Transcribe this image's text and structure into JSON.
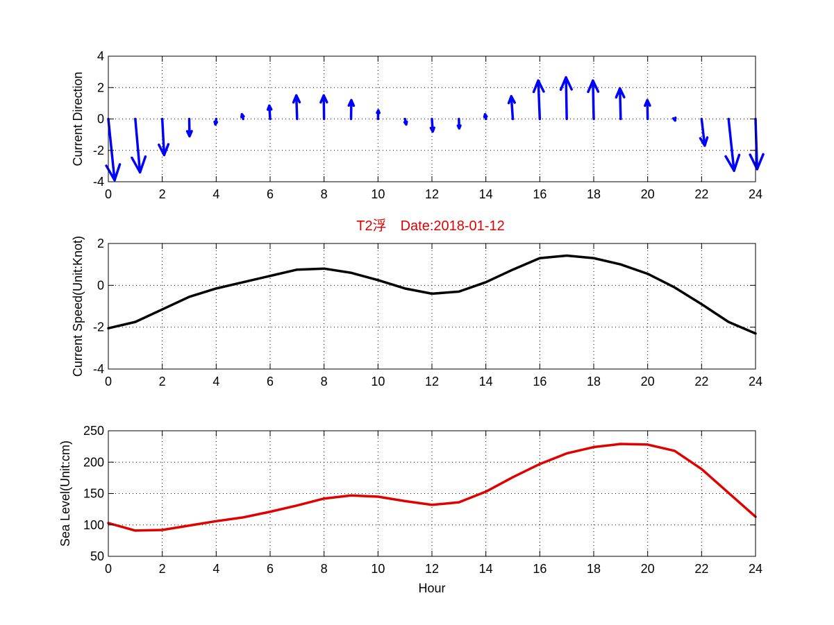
{
  "title": "T2浮　Date:2018-01-12",
  "colors": {
    "direction": "#0000ff",
    "speed": "#000000",
    "sea_level": "#e00000",
    "title": "#e00000"
  },
  "chart_data": [
    {
      "type": "quiver",
      "ylabel": "Current Direction",
      "xlabel": "",
      "xlim": [
        0,
        24
      ],
      "ylim": [
        -4,
        4
      ],
      "xticks": [
        0,
        2,
        4,
        6,
        8,
        10,
        12,
        14,
        16,
        18,
        20,
        22,
        24
      ],
      "yticks": [
        -4,
        -2,
        0,
        2,
        4
      ],
      "grid": true,
      "color": "#0000ff",
      "x": [
        0,
        1,
        2,
        3,
        4,
        5,
        6,
        7,
        8,
        9,
        10,
        11,
        12,
        13,
        14,
        15,
        16,
        17,
        18,
        19,
        20,
        21,
        22,
        23,
        24
      ],
      "u": [
        0.4,
        0.3,
        0.12,
        0.02,
        -0.05,
        -0.08,
        -0.05,
        -0.05,
        -0.02,
        0.02,
        0.02,
        0.08,
        0.05,
        0.02,
        -0.05,
        -0.1,
        -0.1,
        -0.05,
        -0.05,
        -0.05,
        -0.02,
        0.03,
        0.2,
        0.35,
        0.1
      ],
      "v": [
        -3.9,
        -3.4,
        -2.3,
        -1.1,
        -0.35,
        0.3,
        0.85,
        1.5,
        1.5,
        1.2,
        0.55,
        -0.35,
        -0.8,
        -0.6,
        0.3,
        1.45,
        2.45,
        2.65,
        2.45,
        1.95,
        1.2,
        -0.1,
        -1.7,
        -3.3,
        -3.2
      ]
    },
    {
      "type": "line",
      "ylabel": "Current Speed(Unit:Knot)",
      "xlabel": "",
      "xlim": [
        0,
        24
      ],
      "ylim": [
        -4,
        2
      ],
      "xticks": [
        0,
        2,
        4,
        6,
        8,
        10,
        12,
        14,
        16,
        18,
        20,
        22,
        24
      ],
      "yticks": [
        -4,
        -2,
        0,
        2
      ],
      "grid": true,
      "series": [
        {
          "color": "#000000",
          "x": [
            0,
            1,
            2,
            3,
            4,
            5,
            6,
            7,
            8,
            9,
            10,
            11,
            12,
            13,
            14,
            15,
            16,
            17,
            18,
            19,
            20,
            21,
            22,
            23,
            24
          ],
          "y": [
            -2.05,
            -1.75,
            -1.15,
            -0.55,
            -0.15,
            0.15,
            0.45,
            0.75,
            0.8,
            0.6,
            0.25,
            -0.15,
            -0.4,
            -0.3,
            0.15,
            0.75,
            1.3,
            1.42,
            1.3,
            1.0,
            0.55,
            -0.1,
            -0.9,
            -1.75,
            -2.3
          ]
        }
      ]
    },
    {
      "type": "line",
      "ylabel": "Sea Level(Unit:cm)",
      "xlabel": "Hour",
      "xlim": [
        0,
        24
      ],
      "ylim": [
        50,
        250
      ],
      "xticks": [
        0,
        2,
        4,
        6,
        8,
        10,
        12,
        14,
        16,
        18,
        20,
        22,
        24
      ],
      "yticks": [
        50,
        100,
        150,
        200,
        250
      ],
      "grid": true,
      "series": [
        {
          "color": "#e00000",
          "x": [
            0,
            1,
            2,
            3,
            4,
            5,
            6,
            7,
            8,
            9,
            10,
            11,
            12,
            13,
            14,
            15,
            16,
            17,
            18,
            19,
            20,
            21,
            22,
            23,
            24
          ],
          "y": [
            103,
            91,
            92,
            99,
            106,
            112,
            121,
            131,
            142,
            147,
            145,
            138,
            132,
            136,
            153,
            176,
            197,
            214,
            224,
            229,
            228,
            218,
            189,
            151,
            113
          ]
        }
      ]
    }
  ]
}
